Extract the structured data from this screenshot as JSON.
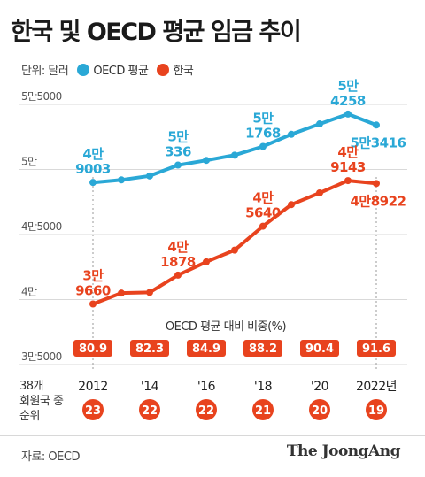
{
  "title": "한국 및 OECD 평균 임금 추이",
  "legend": {
    "unit_label": "단위: 달러",
    "items": [
      {
        "name": "OECD 평균",
        "color": "#2aa8d6"
      },
      {
        "name": "한국",
        "color": "#e8431e"
      }
    ]
  },
  "source": "자료: OECD",
  "brand": "The JoongAng",
  "ratio_title": "OECD 평균 대비 비중(%)",
  "rank_label_lines": [
    "38개",
    "회원국 중",
    "순위"
  ],
  "chart_data": {
    "type": "line",
    "title": "한국 및 OECD 평균 임금 추이",
    "ylabel": "달러",
    "ylim": [
      35000,
      55000
    ],
    "y_ticks": [
      {
        "value": 35000,
        "label": "3만5000"
      },
      {
        "value": 40000,
        "label": "4만"
      },
      {
        "value": 45000,
        "label": "4만5000"
      },
      {
        "value": 50000,
        "label": "5만"
      },
      {
        "value": 55000,
        "label": "5만5000"
      }
    ],
    "x": [
      2012,
      2013,
      2014,
      2015,
      2016,
      2017,
      2018,
      2019,
      2020,
      2021,
      2022
    ],
    "x_ticks": [
      {
        "value": 2012,
        "label": "2012"
      },
      {
        "value": 2014,
        "label": "'14"
      },
      {
        "value": 2016,
        "label": "'16"
      },
      {
        "value": 2018,
        "label": "'18"
      },
      {
        "value": 2020,
        "label": "'20"
      },
      {
        "value": 2022,
        "label": "2022년"
      }
    ],
    "series": [
      {
        "name": "OECD 평균",
        "color": "#2aa8d6",
        "values": [
          49003,
          49200,
          49500,
          50336,
          50700,
          51100,
          51768,
          52700,
          53500,
          54258,
          53416
        ],
        "point_labels": [
          {
            "index": 0,
            "lines": [
              "4만",
              "9003"
            ]
          },
          {
            "index": 3,
            "lines": [
              "5만",
              "336"
            ]
          },
          {
            "index": 6,
            "lines": [
              "5만",
              "1768"
            ]
          },
          {
            "index": 9,
            "lines": [
              "5만",
              "4258"
            ]
          },
          {
            "index": 10,
            "lines": [
              "5만3416"
            ]
          }
        ]
      },
      {
        "name": "한국",
        "color": "#e8431e",
        "values": [
          39660,
          40500,
          40550,
          41878,
          42900,
          43800,
          45640,
          47300,
          48200,
          49143,
          48922
        ],
        "point_labels": [
          {
            "index": 0,
            "lines": [
              "3만",
              "9660"
            ]
          },
          {
            "index": 3,
            "lines": [
              "4만",
              "1878"
            ]
          },
          {
            "index": 6,
            "lines": [
              "4만",
              "5640"
            ]
          },
          {
            "index": 9,
            "lines": [
              "4만",
              "9143"
            ]
          },
          {
            "index": 10,
            "lines": [
              "4만8922"
            ]
          }
        ]
      }
    ],
    "ratio_pct": [
      {
        "year": 2012,
        "value": "80.9"
      },
      {
        "year": 2014,
        "value": "82.3"
      },
      {
        "year": 2016,
        "value": "84.9"
      },
      {
        "year": 2018,
        "value": "88.2"
      },
      {
        "year": 2020,
        "value": "90.4"
      },
      {
        "year": 2022,
        "value": "91.6"
      }
    ],
    "rank": [
      {
        "year": 2012,
        "value": "23"
      },
      {
        "year": 2014,
        "value": "22"
      },
      {
        "year": 2016,
        "value": "22"
      },
      {
        "year": 2018,
        "value": "21"
      },
      {
        "year": 2020,
        "value": "20"
      },
      {
        "year": 2022,
        "value": "19"
      }
    ]
  }
}
